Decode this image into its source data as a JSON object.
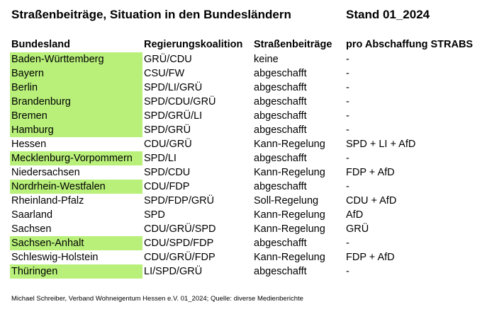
{
  "header": {
    "title": "Straßenbeiträge, Situation in den Bundesländern",
    "stand": "Stand 01_2024"
  },
  "table": {
    "columns": [
      "Bundesland",
      "Regierungskoalition",
      "Straßenbeiträge",
      "pro Abschaffung STRABS"
    ],
    "highlight_color": "#b8f07a",
    "rows": [
      {
        "state": "Baden-Württemberg",
        "coalition": "GRÜ/CDU",
        "fees": "keine",
        "pro": " -",
        "highlight": true
      },
      {
        "state": "Bayern",
        "coalition": "CSU/FW",
        "fees": "abgeschafft",
        "pro": " -",
        "highlight": true
      },
      {
        "state": "Berlin",
        "coalition": "SPD/LI/GRÜ",
        "fees": "abgeschafft",
        "pro": " -",
        "highlight": true
      },
      {
        "state": "Brandenburg",
        "coalition": "SPD/CDU/GRÜ",
        "fees": "abgeschafft",
        "pro": " -",
        "highlight": true
      },
      {
        "state": "Bremen",
        "coalition": "SPD/GRÜ/LI",
        "fees": "abgeschafft",
        "pro": " -",
        "highlight": true
      },
      {
        "state": "Hamburg",
        "coalition": "SPD/GRÜ",
        "fees": "abgeschafft",
        "pro": " -",
        "highlight": true
      },
      {
        "state": "Hessen",
        "coalition": "CDU/GRÜ",
        "fees": "Kann-Regelung",
        "pro": "SPD + LI + AfD",
        "highlight": false
      },
      {
        "state": "Mecklenburg-Vorpommern",
        "coalition": "SPD/LI",
        "fees": "abgeschafft",
        "pro": " -",
        "highlight": true
      },
      {
        "state": "Niedersachsen",
        "coalition": "SPD/CDU",
        "fees": "Kann-Regelung",
        "pro": "FDP + AfD",
        "highlight": false
      },
      {
        "state": "Nordrhein-Westfalen",
        "coalition": "CDU/FDP",
        "fees": "abgeschafft",
        "pro": " -",
        "highlight": true
      },
      {
        "state": "Rheinland-Pfalz",
        "coalition": "SPD/FDP/GRÜ",
        "fees": "Soll-Regelung",
        "pro": "CDU + AfD",
        "highlight": false
      },
      {
        "state": "Saarland",
        "coalition": "SPD",
        "fees": "Kann-Regelung",
        "pro": "AfD",
        "highlight": false
      },
      {
        "state": "Sachsen",
        "coalition": "CDU/GRÜ/SPD",
        "fees": "Kann-Regelung",
        "pro": "GRÜ",
        "highlight": false
      },
      {
        "state": "Sachsen-Anhalt",
        "coalition": "CDU/SPD/FDP",
        "fees": "abgeschafft",
        "pro": " -",
        "highlight": true
      },
      {
        "state": "Schleswig-Holstein",
        "coalition": "CDU/GRÜ/FDP",
        "fees": "Kann-Regelung",
        "pro": "FDP + AfD",
        "highlight": false
      },
      {
        "state": "Thüringen",
        "coalition": "LI/SPD/GRÜ",
        "fees": "abgeschafft",
        "pro": " -",
        "highlight": true
      }
    ]
  },
  "footer": {
    "source": "Michael Schreiber, Verband Wohneigentum Hessen e.V. 01_2024; Quelle: diverse Medienberichte"
  }
}
